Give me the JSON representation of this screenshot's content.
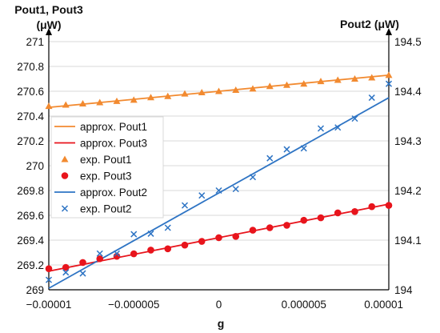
{
  "chart_data": {
    "type": "scatter",
    "x_axis": {
      "label": "g",
      "range": [
        -1e-05,
        1e-05
      ],
      "ticks": [
        -1e-05,
        -5e-06,
        0,
        5e-06,
        1e-05
      ],
      "tick_labels": [
        "−0.00001",
        "−0.000005",
        "0",
        "0.000005",
        "0.00001"
      ]
    },
    "y_axis_left": {
      "label_line1": "Pout1, Pout3",
      "label_line2": "(μW)",
      "range": [
        269,
        271
      ],
      "ticks": [
        269,
        269.2,
        269.4,
        269.6,
        269.8,
        270,
        270.2,
        270.4,
        270.6,
        270.8,
        271
      ],
      "tick_labels": [
        "269",
        "269.2",
        "269.4",
        "269.6",
        "269.8",
        "270",
        "270.2",
        "270.4",
        "270.6",
        "270.8",
        "271"
      ]
    },
    "y_axis_right": {
      "label": "Pout2 (μW)",
      "range": [
        194,
        194.5
      ],
      "ticks": [
        194,
        194.1,
        194.2,
        194.3,
        194.4,
        194.5
      ],
      "tick_labels": [
        "194",
        "194.1",
        "194.2",
        "194.3",
        "194.4",
        "194.5"
      ]
    },
    "grid": {
      "horizontal": true,
      "vertical": false
    },
    "legend_position": "left",
    "series": [
      {
        "name": "approx. Pout1",
        "kind": "line",
        "axis": "left",
        "color": "#f28a30",
        "x": [
          -1e-05,
          1e-05
        ],
        "y": [
          270.47,
          270.73
        ]
      },
      {
        "name": "approx. Pout3",
        "kind": "line",
        "axis": "left",
        "color": "#e8141c",
        "x": [
          -1e-05,
          1e-05
        ],
        "y": [
          269.15,
          269.69
        ]
      },
      {
        "name": "exp. Pout1",
        "kind": "marker",
        "marker": "triangle",
        "axis": "left",
        "color": "#f28a30",
        "x": [
          -1e-05,
          -9e-06,
          -8e-06,
          -7e-06,
          -6e-06,
          -5e-06,
          -4e-06,
          -3e-06,
          -2e-06,
          -1e-06,
          0,
          1e-06,
          2e-06,
          3e-06,
          4e-06,
          5e-06,
          6e-06,
          7e-06,
          8e-06,
          9e-06,
          1e-05
        ],
        "y": [
          270.48,
          270.49,
          270.5,
          270.51,
          270.52,
          270.53,
          270.55,
          270.56,
          270.58,
          270.59,
          270.6,
          270.61,
          270.62,
          270.64,
          270.65,
          270.66,
          270.68,
          270.69,
          270.7,
          270.71,
          270.73
        ]
      },
      {
        "name": "exp. Pout3",
        "kind": "marker",
        "marker": "circle",
        "axis": "left",
        "color": "#e8141c",
        "x": [
          -1e-05,
          -9e-06,
          -8e-06,
          -7e-06,
          -6e-06,
          -5e-06,
          -4e-06,
          -3e-06,
          -2e-06,
          -1e-06,
          0,
          1e-06,
          2e-06,
          3e-06,
          4e-06,
          5e-06,
          6e-06,
          7e-06,
          8e-06,
          9e-06,
          1e-05
        ],
        "y": [
          269.17,
          269.18,
          269.22,
          269.25,
          269.27,
          269.29,
          269.32,
          269.33,
          269.36,
          269.39,
          269.42,
          269.43,
          269.48,
          269.5,
          269.52,
          269.56,
          269.58,
          269.62,
          269.63,
          269.67,
          269.68
        ]
      },
      {
        "name": "approx. Pout2",
        "kind": "line",
        "axis": "right",
        "color": "#2e74c4",
        "x": [
          -1e-05,
          1e-05
        ],
        "y": [
          194.003,
          194.387
        ]
      },
      {
        "name": "exp. Pout2",
        "kind": "marker",
        "marker": "x",
        "axis": "right",
        "color": "#2e74c4",
        "x": [
          -1e-05,
          -9e-06,
          -8e-06,
          -7e-06,
          -6e-06,
          -5e-06,
          -4e-06,
          -3e-06,
          -2e-06,
          -1e-06,
          0,
          1e-06,
          2e-06,
          3e-06,
          4e-06,
          5e-06,
          6e-06,
          7e-06,
          8e-06,
          9e-06,
          1e-05
        ],
        "y": [
          194.02,
          194.035,
          194.033,
          194.073,
          194.073,
          194.112,
          194.113,
          194.125,
          194.17,
          194.19,
          194.2,
          194.203,
          194.227,
          194.265,
          194.283,
          194.285,
          194.325,
          194.327,
          194.345,
          194.387,
          194.415
        ]
      }
    ]
  }
}
